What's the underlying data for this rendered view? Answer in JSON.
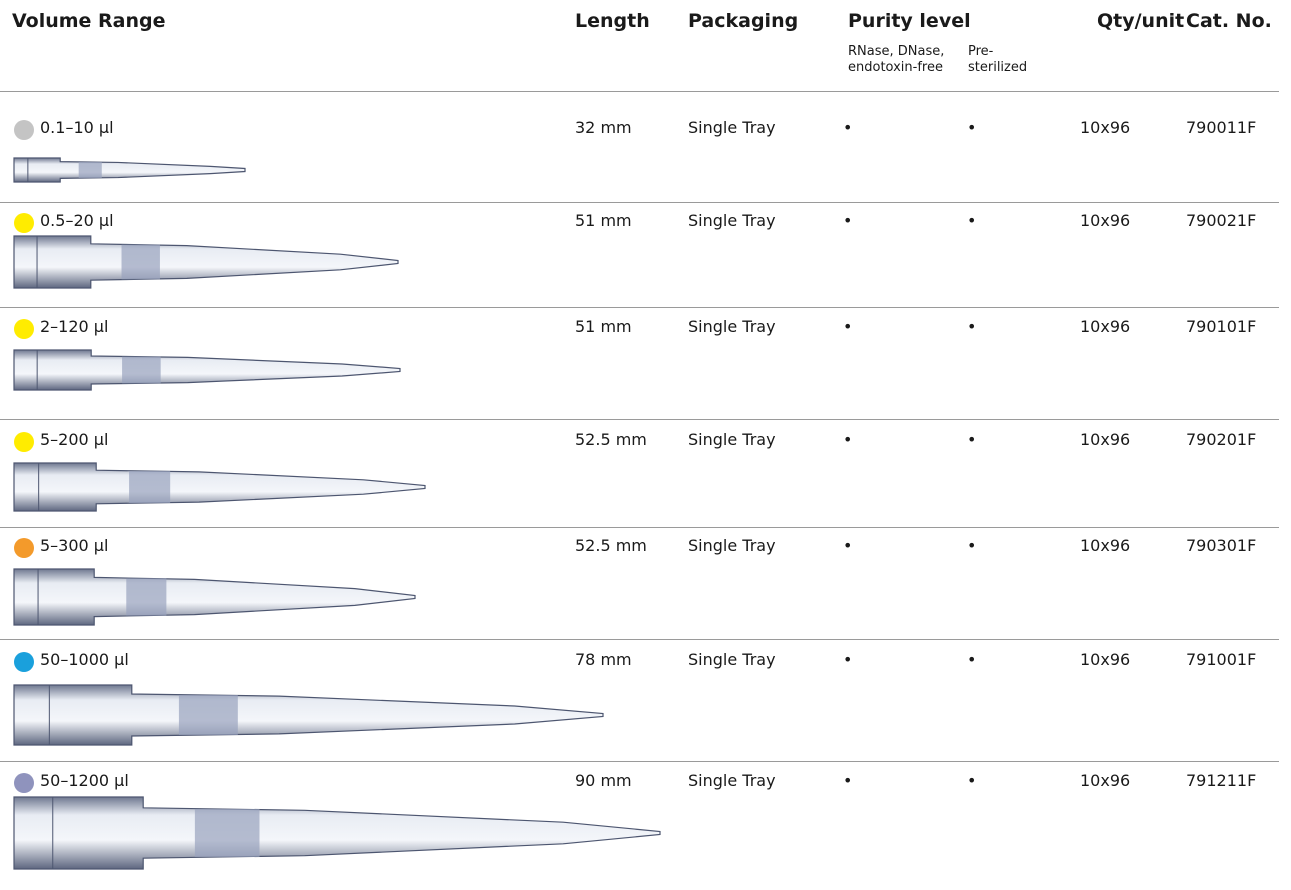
{
  "header": {
    "columns": [
      "Volume Range",
      "Length",
      "Packaging",
      "Purity level",
      "Qty/unit",
      "Cat. No."
    ],
    "purity_sub": [
      "RNase, DNase, endotoxin-free",
      "Pre-sterilized"
    ]
  },
  "rows": [
    {
      "color": "#c4c4c4",
      "volume": "0.1–10 µl",
      "length": "32 mm",
      "packaging": "Single Tray",
      "rnase_free": "•",
      "sterilized": "•",
      "qty": "10x96",
      "cat_no": "790011F"
    },
    {
      "color": "#ffec00",
      "volume": "0.5–20 µl",
      "length": "51 mm",
      "packaging": "Single Tray",
      "rnase_free": "•",
      "sterilized": "•",
      "qty": "10x96",
      "cat_no": "790021F"
    },
    {
      "color": "#ffec00",
      "volume": "2–120 µl",
      "length": "51 mm",
      "packaging": "Single Tray",
      "rnase_free": "•",
      "sterilized": "•",
      "qty": "10x96",
      "cat_no": "790101F"
    },
    {
      "color": "#ffec00",
      "volume": "5–200 µl",
      "length": "52.5 mm",
      "packaging": "Single Tray",
      "rnase_free": "•",
      "sterilized": "•",
      "qty": "10x96",
      "cat_no": "790201F"
    },
    {
      "color": "#f39a2b",
      "volume": "5–300 µl",
      "length": "52.5 mm",
      "packaging": "Single Tray",
      "rnase_free": "•",
      "sterilized": "•",
      "qty": "10x96",
      "cat_no": "790301F"
    },
    {
      "color": "#1aa0dc",
      "volume": "50–1000 µl",
      "length": "78 mm",
      "packaging": "Single Tray",
      "rnase_free": "•",
      "sterilized": "•",
      "qty": "10x96",
      "cat_no": "791001F"
    },
    {
      "color": "#8f93bd",
      "volume": "50–1200 µl",
      "length": "90 mm",
      "packaging": "Single Tray",
      "rnase_free": "•",
      "sterilized": "•",
      "qty": "10x96",
      "cat_no": "791211F"
    }
  ]
}
